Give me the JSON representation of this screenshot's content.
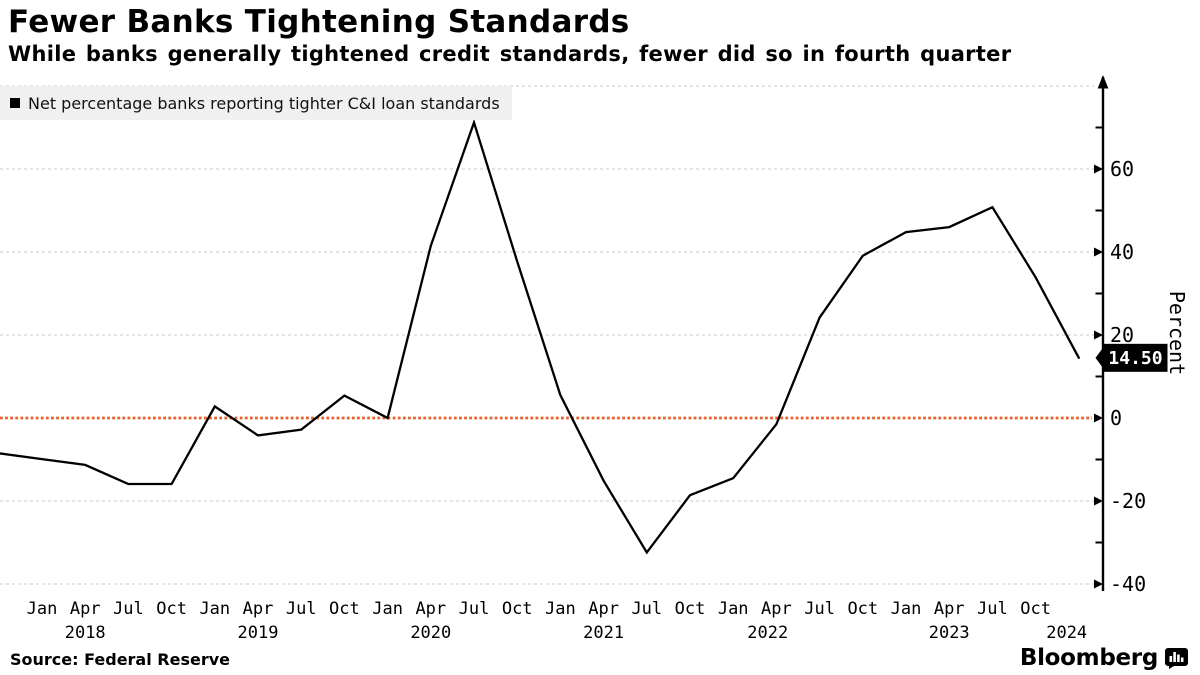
{
  "header": {
    "title": "Fewer Banks Tightening Standards",
    "subtitle": "While banks generally tightened credit standards, fewer did so in fourth quarter"
  },
  "legend": {
    "label": "Net percentage banks reporting tighter C&I loan standards",
    "swatch_color": "#000000"
  },
  "chart_data": {
    "type": "line",
    "title": "Fewer Banks Tightening Standards",
    "series_name": "Net percentage banks reporting tighter C&I loan standards",
    "x": [
      "Oct 2017",
      "Jan 2018",
      "Apr 2018",
      "Jul 2018",
      "Oct 2018",
      "Jan 2019",
      "Apr 2019",
      "Jul 2019",
      "Oct 2019",
      "Jan 2020",
      "Apr 2020",
      "Jul 2020",
      "Oct 2020",
      "Jan 2021",
      "Apr 2021",
      "Jul 2021",
      "Oct 2021",
      "Jan 2022",
      "Apr 2022",
      "Jul 2022",
      "Oct 2022",
      "Jan 2023",
      "Apr 2023",
      "Jul 2023",
      "Oct 2023",
      "Jan 2024"
    ],
    "values": [
      -8.5,
      -9.9,
      -11.3,
      -15.9,
      -15.9,
      2.8,
      -4.2,
      -2.8,
      5.4,
      0.0,
      41.5,
      71.2,
      37.7,
      5.5,
      -15.1,
      -32.4,
      -18.6,
      -14.5,
      -1.5,
      24.2,
      39.1,
      44.8,
      46.0,
      50.8,
      33.9,
      14.5
    ],
    "ylabel": "Percent",
    "ylim": [
      -40,
      80
    ],
    "grid": true,
    "legend_position": "top-left",
    "y_ticks_labeled": [
      60,
      40,
      20,
      0,
      -20,
      -40
    ],
    "y_ticks_minor": [
      70,
      50,
      30,
      10,
      -10,
      -30
    ],
    "gridline_values": [
      80,
      60,
      40,
      20,
      -20,
      -40
    ],
    "zero_line_value": 0,
    "last_value": 14.5,
    "last_value_label": "14.50",
    "line_color": "#000000",
    "zero_line_color": "#e8622d",
    "grid_color": "#c9c9c9",
    "x_axis": {
      "months": [
        "Jan",
        "Apr",
        "Jul",
        "Oct",
        "Jan",
        "Apr",
        "Jul",
        "Oct",
        "Jan",
        "Apr",
        "Jul",
        "Oct",
        "Jan",
        "Apr",
        "Jul",
        "Oct",
        "Jan",
        "Apr",
        "Jul",
        "Oct",
        "Jan",
        "Apr",
        "Jul",
        "Oct"
      ],
      "years": [
        {
          "label": "2018",
          "qi": 1
        },
        {
          "label": "2019",
          "qi": 5
        },
        {
          "label": "2020",
          "qi": 9
        },
        {
          "label": "2021",
          "qi": 13
        },
        {
          "label": "2022",
          "qi": 16.8
        },
        {
          "label": "2023",
          "qi": 21
        },
        {
          "label": "2024",
          "qi": 23.72
        }
      ]
    }
  },
  "footer": {
    "source": "Source: Federal Reserve",
    "brand": "Bloomberg"
  }
}
